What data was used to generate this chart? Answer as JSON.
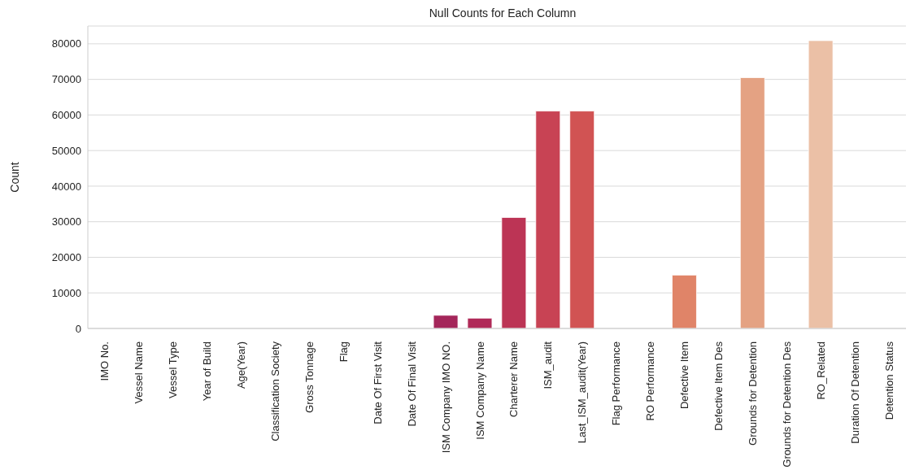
{
  "chart_data": {
    "type": "bar",
    "title": "Null Counts for Each Column",
    "ylabel": "Count",
    "categories": [
      "IMO No.",
      "Vessel Name",
      "Vessel Type",
      "Year of Build",
      "Age(Year)",
      "Classification Society",
      "Gross Tonnage",
      "Flag",
      "Date Of First Visit",
      "Date Of Final Visit",
      "ISM Company IMO NO.",
      "ISM Company Name",
      "Charterer Name",
      "ISM_audit",
      "Last_ISM_audit(Year)",
      "Flag Performance",
      "RO Performance",
      "Defective Item",
      "Defective Item Des",
      "Grounds for Detention",
      "Grounds for Detention Des",
      "RO_Related",
      "Duration Of Detention",
      "Detention Status"
    ],
    "values": [
      0,
      0,
      0,
      0,
      0,
      0,
      0,
      0,
      0,
      0,
      3700,
      2900,
      31200,
      61100,
      61100,
      0,
      0,
      15000,
      0,
      70500,
      0,
      80900,
      0,
      0
    ],
    "colors": [
      "#1c1530",
      "#26183a",
      "#311a43",
      "#3c1c4c",
      "#481d53",
      "#541e59",
      "#601f5d",
      "#6c1f60",
      "#781f61",
      "#852061",
      "#a4265a",
      "#b02a58",
      "#bc3455",
      "#c84354",
      "#d15353",
      "#d9625a",
      "#de7361",
      "#e08468",
      "#e29375",
      "#e4a283",
      "#e7b194",
      "#ebc0a6",
      "#eecfb9",
      "#f2ddcc"
    ],
    "ylim": [
      0,
      85000
    ],
    "yticks": [
      0,
      10000,
      20000,
      30000,
      40000,
      50000,
      60000,
      70000,
      80000
    ],
    "grid": "y"
  }
}
